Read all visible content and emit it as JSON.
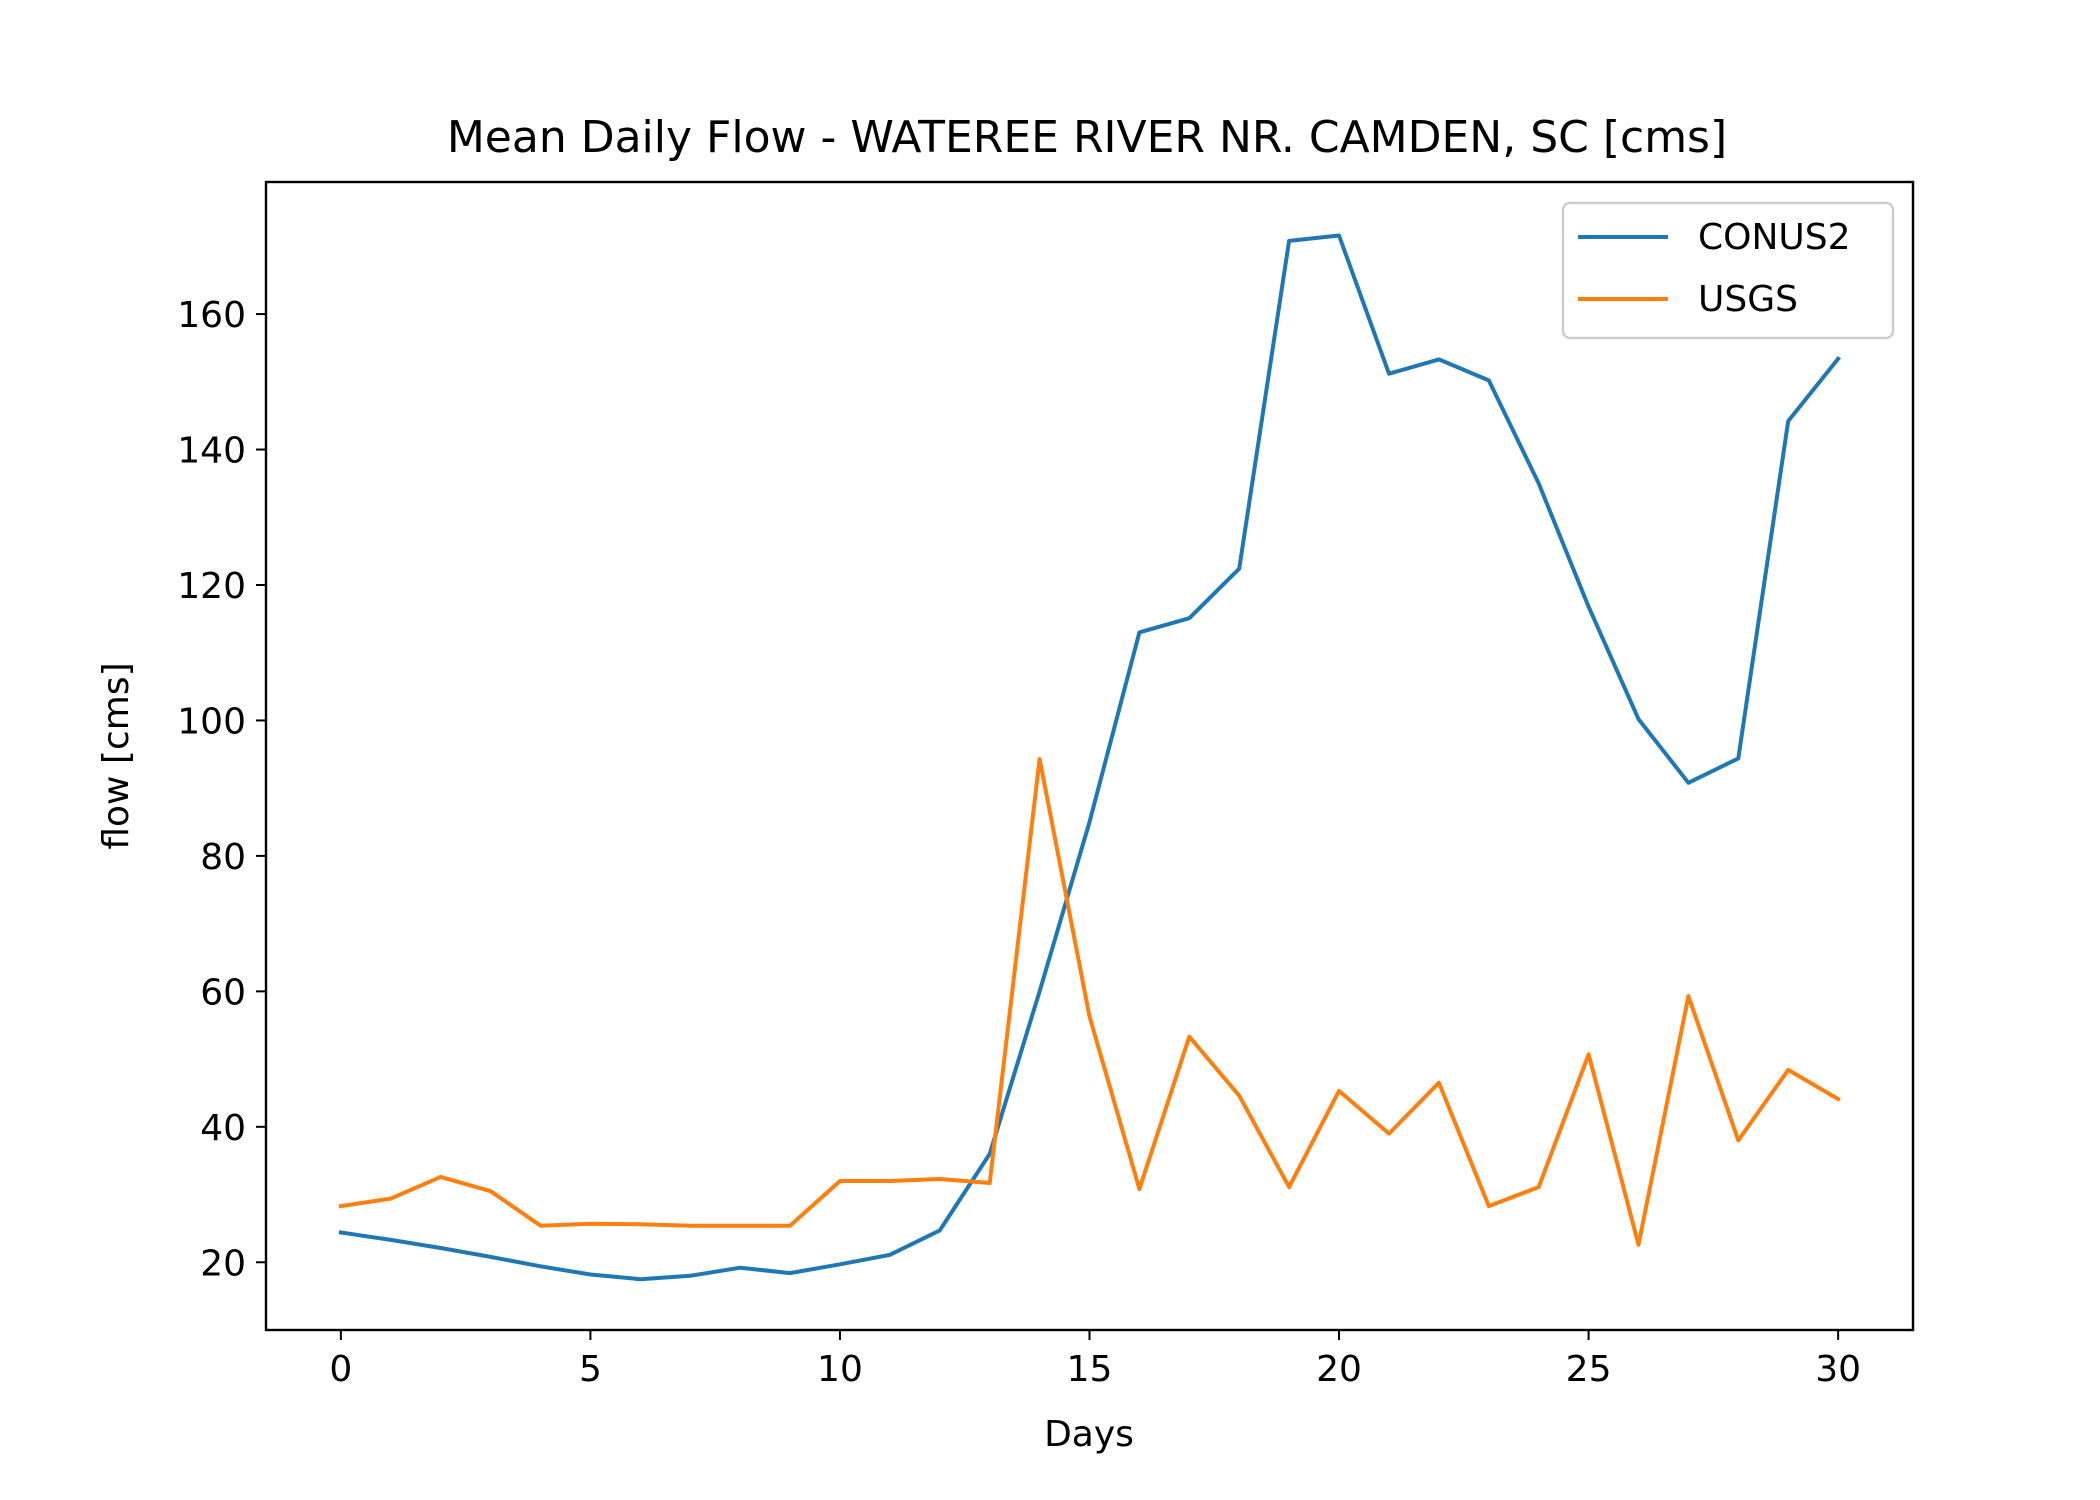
{
  "chart_data": {
    "type": "line",
    "title": "Mean Daily Flow - WATEREE RIVER NR. CAMDEN, SC [cms]",
    "xlabel": "Days",
    "ylabel": "flow [cms]",
    "xlim": [
      -1.5,
      31.5
    ],
    "ylim": [
      10,
      179.5
    ],
    "xticks": [
      0,
      5,
      10,
      15,
      20,
      25,
      30
    ],
    "yticks": [
      20,
      40,
      60,
      80,
      100,
      120,
      140,
      160
    ],
    "grid": false,
    "legend_position": "top-right",
    "x": [
      0,
      1,
      2,
      3,
      4,
      5,
      6,
      7,
      8,
      9,
      10,
      11,
      12,
      13,
      14,
      15,
      16,
      17,
      18,
      19,
      20,
      21,
      22,
      23,
      24,
      25,
      26,
      27,
      28,
      29,
      30
    ],
    "series": [
      {
        "name": "CONUS2",
        "color": "#1f77b4",
        "values": [
          24.4,
          23.3,
          22.1,
          20.8,
          19.4,
          18.2,
          17.5,
          18.0,
          19.2,
          18.4,
          19.7,
          21.1,
          24.7,
          36.0,
          60.0,
          85.0,
          113.0,
          115.1,
          122.4,
          170.8,
          171.6,
          151.2,
          153.3,
          150.2,
          135.0,
          116.8,
          100.2,
          90.8,
          94.4,
          144.2,
          153.4
        ]
      },
      {
        "name": "USGS",
        "color": "#ff7f0e",
        "values": [
          28.3,
          29.4,
          32.6,
          30.5,
          25.4,
          25.7,
          25.6,
          25.4,
          25.4,
          25.4,
          32.0,
          32.0,
          32.3,
          31.7,
          94.3,
          56.3,
          30.8,
          53.3,
          44.6,
          31.1,
          45.3,
          39.0,
          46.5,
          28.3,
          31.1,
          50.7,
          22.6,
          59.3,
          38.0,
          48.4,
          44.1
        ]
      }
    ]
  }
}
